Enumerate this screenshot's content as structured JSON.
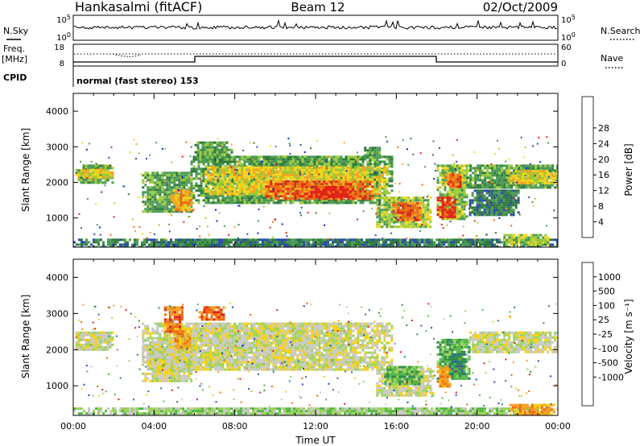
{
  "header": {
    "station": "Hankasalmi (fitACF)",
    "beam": "Beam 12",
    "date": "02/Oct/2009"
  },
  "strip_labels": {
    "nsky": "N.Sky",
    "nsearch": "N.Search",
    "freq_line1": "Freq.",
    "freq_line2": "[MHz]",
    "nave": "Nave",
    "cpid": "CPID",
    "cpid_text": "normal (fast stereo) 153",
    "nsky_top": "10^5",
    "nsky_bottom": "10^0",
    "nsearch_top": "10^5",
    "nsearch_bottom": "10^0",
    "freq_top": "18",
    "freq_bottom": "8",
    "nave_top": "60",
    "nave_bottom": "0"
  },
  "chart_data": [
    {
      "type": "heatmap",
      "name": "Power panel",
      "xlabel": "",
      "ylabel": "Slant Range [km]",
      "xlim": [
        0,
        24
      ],
      "ylim": [
        180,
        4500
      ],
      "yticks": [
        1000,
        2000,
        3000,
        4000
      ],
      "colorbar": {
        "label": "Power [dB]",
        "ticks": [
          "4",
          "8",
          "12",
          "16",
          "20",
          "24",
          "28"
        ],
        "colors": [
          "#0022ee",
          "#2b4aa8",
          "#2e7a3a",
          "#4a9a55",
          "#9bcb3c",
          "#f5d61e",
          "#f5a623",
          "#ef6a14",
          "#e02418"
        ]
      },
      "regions": [
        {
          "t0": 0.1,
          "t1": 2.0,
          "r0": 2000,
          "r1": 2500,
          "level": 3
        },
        {
          "t0": 0.1,
          "t1": 2.0,
          "r0": 2150,
          "r1": 2380,
          "level": 5
        },
        {
          "t0": 3.4,
          "t1": 5.9,
          "r0": 1200,
          "r1": 2300,
          "level": 3
        },
        {
          "t0": 4.8,
          "t1": 5.9,
          "r0": 1250,
          "r1": 1800,
          "level": 6
        },
        {
          "t0": 5.8,
          "t1": 15.8,
          "r0": 1450,
          "r1": 2750,
          "level": 3
        },
        {
          "t0": 6.5,
          "t1": 15.5,
          "r0": 1700,
          "r1": 2450,
          "level": 5
        },
        {
          "t0": 9.5,
          "t1": 14.8,
          "r0": 1550,
          "r1": 2050,
          "level": 7
        },
        {
          "t0": 11.5,
          "t1": 13.8,
          "r0": 1600,
          "r1": 1900,
          "level": 8
        },
        {
          "t0": 6.0,
          "t1": 7.8,
          "r0": 2600,
          "r1": 3150,
          "level": 3
        },
        {
          "t0": 14.4,
          "t1": 15.2,
          "r0": 2600,
          "r1": 3000,
          "level": 3
        },
        {
          "t0": 15.0,
          "t1": 17.7,
          "r0": 750,
          "r1": 1600,
          "level": 4
        },
        {
          "t0": 15.8,
          "t1": 17.2,
          "r0": 950,
          "r1": 1450,
          "level": 7
        },
        {
          "t0": 18.0,
          "t1": 19.5,
          "r0": 1000,
          "r1": 2500,
          "level": 4
        },
        {
          "t0": 18.0,
          "t1": 18.9,
          "r0": 1050,
          "r1": 1600,
          "level": 8
        },
        {
          "t0": 18.4,
          "t1": 19.2,
          "r0": 1850,
          "r1": 2250,
          "level": 7
        },
        {
          "t0": 19.5,
          "t1": 24.0,
          "r0": 1850,
          "r1": 2500,
          "level": 3
        },
        {
          "t0": 21.5,
          "t1": 24.0,
          "r0": 2000,
          "r1": 2350,
          "level": 5
        },
        {
          "t0": 19.6,
          "t1": 22.0,
          "r0": 1100,
          "r1": 1800,
          "level": 2
        },
        {
          "t0": 0.0,
          "t1": 24.0,
          "r0": 180,
          "r1": 420,
          "level": 2
        },
        {
          "t0": 21.3,
          "t1": 23.5,
          "r0": 250,
          "r1": 550,
          "level": 4
        }
      ]
    },
    {
      "type": "heatmap",
      "name": "Velocity panel",
      "xlabel": "Time UT",
      "ylabel": "Slant Range [km]",
      "xlim": [
        0,
        24
      ],
      "ylim": [
        180,
        4500
      ],
      "xticks": [
        "00:00",
        "04:00",
        "08:00",
        "12:00",
        "16:00",
        "20:00",
        "00:00"
      ],
      "yticks": [
        1000,
        2000,
        3000,
        4000
      ],
      "colorbar": {
        "label": "Velocity [m s⁻¹]",
        "ticks": [
          "1000",
          "500",
          "100",
          "25",
          "-25",
          "-100",
          "-500",
          "-1000"
        ],
        "colors": [
          "#1e44c8",
          "#2a6a9a",
          "#2f8a4a",
          "#54b848",
          "#9ad25a",
          "#c8c8c4",
          "#f5d010",
          "#f5a020",
          "#ee6a12",
          "#e02018"
        ]
      },
      "regions": [
        {
          "t0": 0.1,
          "t1": 2.0,
          "r0": 2000,
          "r1": 2500,
          "level": 5
        },
        {
          "t0": 3.4,
          "t1": 15.8,
          "r0": 1450,
          "r1": 2750,
          "level": 5
        },
        {
          "t0": 3.4,
          "t1": 5.9,
          "r0": 1100,
          "r1": 2300,
          "level": 5
        },
        {
          "t0": 15.0,
          "t1": 17.8,
          "r0": 750,
          "r1": 1500,
          "level": 5
        },
        {
          "t0": 19.5,
          "t1": 24.0,
          "r0": 1900,
          "r1": 2500,
          "level": 5
        },
        {
          "t0": 15.4,
          "t1": 17.2,
          "r0": 1050,
          "r1": 1550,
          "level": 3
        },
        {
          "t0": 18.0,
          "t1": 19.6,
          "r0": 1200,
          "r1": 2300,
          "level": 3
        },
        {
          "t0": 18.6,
          "t1": 19.4,
          "r0": 1300,
          "r1": 1900,
          "level": 2
        },
        {
          "t0": 18.0,
          "t1": 18.6,
          "r0": 950,
          "r1": 1550,
          "level": 7
        },
        {
          "t0": 4.5,
          "t1": 5.4,
          "r0": 2500,
          "r1": 3200,
          "level": 8
        },
        {
          "t0": 6.2,
          "t1": 7.5,
          "r0": 2800,
          "r1": 3200,
          "level": 8
        },
        {
          "t0": 5.0,
          "t1": 5.8,
          "r0": 2000,
          "r1": 2600,
          "level": 7
        },
        {
          "t0": 0.0,
          "t1": 24.0,
          "r0": 180,
          "r1": 400,
          "level": 4
        },
        {
          "t0": 21.6,
          "t1": 23.8,
          "r0": 200,
          "r1": 500,
          "level": 7
        }
      ]
    }
  ]
}
